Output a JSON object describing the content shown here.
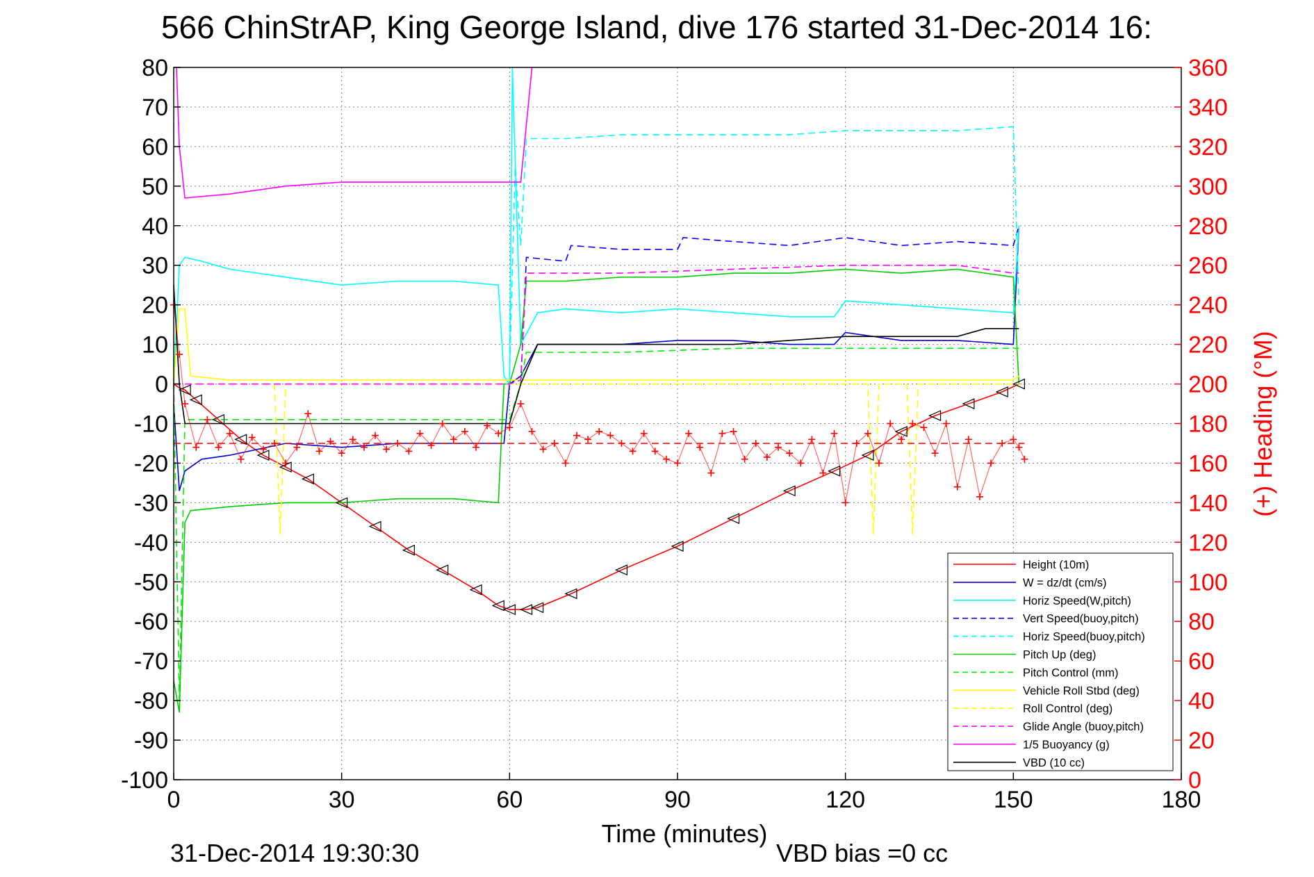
{
  "chart_data": {
    "type": "line",
    "title": "566 ChinStrAP, King George Island, dive 176 started 31-Dec-2014 16:",
    "xlabel": "Time (minutes)",
    "ylabel": "",
    "ylabel_right": "(+) Heading (°M)",
    "xlim": [
      0,
      180
    ],
    "ylim": [
      -100,
      80
    ],
    "ylim_right": [
      0,
      360
    ],
    "x_ticks": [
      "0",
      "30",
      "60",
      "90",
      "120",
      "150",
      "180"
    ],
    "y_ticks": [
      "80",
      "70",
      "60",
      "50",
      "40",
      "30",
      "20",
      "10",
      "0",
      "-10",
      "-20",
      "-30",
      "-40",
      "-50",
      "-60",
      "-70",
      "-80",
      "-90",
      "-100"
    ],
    "y_ticks_right": [
      "360",
      "340",
      "320",
      "300",
      "280",
      "260",
      "240",
      "220",
      "200",
      "180",
      "160",
      "140",
      "120",
      "100",
      "80",
      "60",
      "40",
      "20",
      "0"
    ],
    "grid": true,
    "legend_position": "bottom-right",
    "footer_date": "31-Dec-2014 19:30:30",
    "footer_bias": "VBD bias =0 cc",
    "colors": {
      "heading": "#ff0000",
      "right_axis": "#ff0000",
      "grid": "#7f7f7f"
    },
    "series": [
      {
        "name": "Height (10m)",
        "color": "#ff0000",
        "dash": "solid",
        "x": [
          0,
          1,
          2,
          4,
          8,
          12,
          16,
          20,
          24,
          30,
          36,
          42,
          48,
          54,
          58,
          60,
          63,
          65,
          71,
          80,
          90,
          100,
          110,
          118,
          124,
          130,
          136,
          142,
          148,
          151
        ],
        "y": [
          0,
          -1,
          -1.5,
          -4,
          -9,
          -14,
          -18,
          -21,
          -24,
          -30,
          -36,
          -42,
          -47,
          -52,
          -56,
          -57,
          -57,
          -56.5,
          -53,
          -47,
          -41,
          -34,
          -27,
          -22,
          -18,
          -12,
          -8,
          -5,
          -2,
          0
        ]
      },
      {
        "name": "W = dz/dt (cm/s)",
        "color": "#0000cc",
        "dash": "solid",
        "x": [
          0,
          1,
          2,
          5,
          10,
          20,
          30,
          40,
          50,
          59,
          60,
          62,
          65,
          70,
          80,
          90,
          100,
          110,
          118,
          120,
          130,
          140,
          150,
          151
        ],
        "y": [
          -5,
          -27,
          -22,
          -19,
          -18,
          -15,
          -16,
          -15,
          -15,
          -15,
          0,
          2,
          10,
          10,
          10,
          11,
          11,
          10,
          10,
          13,
          11,
          11,
          10,
          40
        ]
      },
      {
        "name": "Horiz Speed(W,pitch)",
        "color": "#00ffff",
        "dash": "solid",
        "x": [
          0,
          1,
          2,
          5,
          10,
          20,
          30,
          40,
          50,
          58,
          59,
          60,
          60.5,
          62,
          65,
          70,
          80,
          90,
          100,
          110,
          118,
          120,
          130,
          140,
          150,
          151
        ],
        "y": [
          0,
          30,
          32,
          31,
          29,
          27,
          25,
          26,
          26,
          25,
          2,
          0,
          80,
          10,
          18,
          19,
          18,
          19,
          18,
          17,
          17,
          21,
          20,
          19,
          18,
          40
        ]
      },
      {
        "name": "Vert Speed(buoy,pitch)",
        "color": "#0000ff",
        "dash": "dashed",
        "x": [
          62,
          63,
          70,
          71,
          80,
          90,
          91,
          100,
          110,
          120,
          130,
          140,
          150,
          151
        ],
        "y": [
          0,
          32,
          31,
          35,
          34,
          34,
          37,
          36,
          35,
          37,
          35,
          36,
          35,
          40
        ]
      },
      {
        "name": "Horiz Speed(buoy,pitch)",
        "color": "#00ffff",
        "dash": "dashed",
        "x": [
          60,
          61,
          62,
          63,
          70,
          80,
          90,
          100,
          110,
          120,
          130,
          140,
          150,
          151
        ],
        "y": [
          2,
          55,
          35,
          62,
          62,
          63,
          63,
          63,
          63,
          64,
          64,
          64,
          65,
          20
        ]
      },
      {
        "name": "Pitch Up (deg)",
        "color": "#00cc00",
        "dash": "solid",
        "x": [
          0,
          1,
          2,
          3,
          10,
          20,
          30,
          40,
          50,
          58,
          59,
          60,
          62,
          63,
          70,
          80,
          90,
          100,
          110,
          120,
          130,
          140,
          150,
          151
        ],
        "y": [
          -75,
          -83,
          -35,
          -32,
          -31,
          -30,
          -30,
          -29,
          -29,
          -30,
          0,
          0,
          10,
          26,
          26,
          27,
          27,
          28,
          28,
          29,
          28,
          29,
          27,
          0
        ]
      },
      {
        "name": "Pitch Control (mm)",
        "color": "#00ee00",
        "dash": "dashed",
        "x": [
          0,
          1,
          2,
          3,
          60,
          62,
          63,
          80,
          100,
          120,
          140,
          151
        ],
        "y": [
          0,
          -80,
          -9,
          -9,
          -9,
          0,
          8,
          8,
          9,
          9,
          9,
          9
        ]
      },
      {
        "name": "Vehicle Roll Stbd (deg)",
        "color": "#ffff00",
        "dash": "solid",
        "x": [
          0,
          1,
          2,
          3,
          10,
          20,
          30,
          40,
          50,
          60,
          62,
          63,
          80,
          90,
          100,
          110,
          120,
          130,
          140,
          150,
          151
        ],
        "y": [
          0,
          19,
          19,
          2,
          1,
          1,
          1,
          1,
          1,
          1,
          1,
          1,
          1,
          1,
          1,
          1,
          1,
          1,
          1,
          1,
          2
        ]
      },
      {
        "name": "Roll Control (deg)",
        "color": "#ffff00",
        "dash": "dashed",
        "x": [
          0,
          2,
          18,
          19,
          20,
          60,
          62,
          124,
          125,
          126,
          131,
          132,
          133,
          151
        ],
        "y": [
          0,
          0,
          0,
          -38,
          0,
          0,
          0,
          0,
          -38,
          0,
          0,
          -38,
          0,
          0
        ]
      },
      {
        "name": "Glide Angle (buoy,pitch)",
        "color": "#ff00ff",
        "dash": "dashed",
        "x": [
          0,
          60,
          62,
          63,
          80,
          100,
          120,
          140,
          150,
          151
        ],
        "y": [
          0,
          0,
          1,
          28,
          28,
          29,
          30,
          30,
          28,
          28
        ]
      },
      {
        "name": "1/5 Buoyancy (g)",
        "color": "#ff00ff",
        "dash": "solid",
        "x": [
          0.5,
          1,
          2,
          10,
          20,
          30,
          40,
          50,
          60,
          62,
          64
        ],
        "y": [
          80,
          60,
          47,
          48,
          50,
          51,
          51,
          51,
          51,
          51,
          80
        ]
      },
      {
        "name": "VBD (10 cc)",
        "color": "#000000",
        "dash": "solid",
        "x": [
          0,
          1,
          2,
          3,
          60,
          62,
          65,
          80,
          100,
          120,
          140,
          145,
          151
        ],
        "y": [
          25,
          0,
          -10,
          -10,
          -10,
          0,
          10,
          10,
          10,
          12,
          12,
          14,
          14
        ]
      }
    ],
    "heading": {
      "name": "(+) Heading (°M)",
      "color": "#ff0000",
      "marker": "+",
      "target": 170,
      "x": [
        0,
        1,
        2,
        4,
        6,
        8,
        10,
        12,
        14,
        16,
        18,
        20,
        22,
        24,
        26,
        28,
        30,
        32,
        34,
        36,
        38,
        40,
        42,
        44,
        46,
        48,
        50,
        52,
        54,
        56,
        58,
        60,
        62,
        64,
        66,
        68,
        70,
        72,
        74,
        76,
        78,
        80,
        82,
        84,
        86,
        88,
        90,
        92,
        94,
        96,
        98,
        100,
        102,
        104,
        106,
        108,
        110,
        112,
        114,
        116,
        118,
        120,
        122,
        124,
        126,
        128,
        130,
        132,
        134,
        136,
        138,
        140,
        142,
        144,
        146,
        148,
        150,
        151,
        152
      ],
      "y": [
        240,
        215,
        190,
        168,
        182,
        168,
        175,
        162,
        173,
        167,
        170,
        160,
        168,
        185,
        166,
        171,
        165,
        172,
        168,
        174,
        167,
        170,
        166,
        175,
        169,
        180,
        172,
        176,
        168,
        179,
        175,
        178,
        190,
        176,
        167,
        170,
        160,
        174,
        172,
        176,
        174,
        170,
        166,
        175,
        166,
        162,
        160,
        175,
        168,
        155,
        175,
        176,
        162,
        170,
        163,
        168,
        165,
        160,
        172,
        155,
        175,
        140,
        170,
        175,
        160,
        180,
        172,
        180,
        178,
        165,
        180,
        148,
        172,
        143,
        160,
        170,
        172,
        168,
        162
      ]
    }
  }
}
